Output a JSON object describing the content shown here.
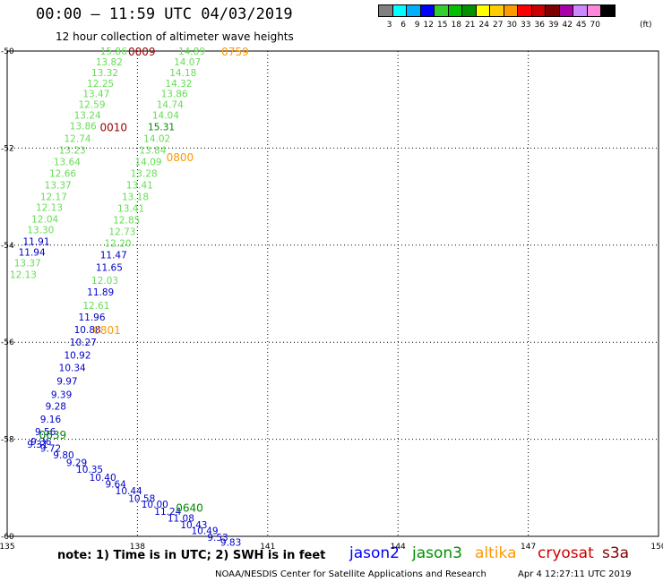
{
  "header": {
    "title": "00:00 – 11:59 UTC 04/03/2019",
    "subtitle": "12 hour collection of altimeter wave heights"
  },
  "color_scale": {
    "labels": [
      "3",
      "6",
      "9",
      "12",
      "15",
      "18",
      "21",
      "24",
      "27",
      "30",
      "33",
      "36",
      "39",
      "42",
      "45",
      "70"
    ],
    "unit": "(ft)",
    "colors": [
      "#808080",
      "#00ffff",
      "#00b0ff",
      "#0000ff",
      "#30d030",
      "#00c000",
      "#009000",
      "#ffff00",
      "#ffcc00",
      "#ff9900",
      "#ff0000",
      "#cc0000",
      "#800000",
      "#aa00aa",
      "#cc88ff",
      "#ff88dd",
      "#000000"
    ]
  },
  "chart_data": {
    "type": "scatter",
    "x_axis": {
      "range": [
        135,
        150
      ],
      "ticks": [
        "135",
        "138",
        "141",
        "144",
        "147",
        "150"
      ],
      "grid": true
    },
    "y_axis": {
      "range": [
        -60,
        -50
      ],
      "ticks": [
        "-50",
        "-52",
        "-54",
        "-56",
        "-58",
        "-60"
      ],
      "grid": true
    },
    "series": [
      {
        "name": "jason2",
        "color": "#0000ff"
      },
      {
        "name": "jason3",
        "color": "#009000"
      },
      {
        "name": "altika",
        "color": "#ff9900"
      },
      {
        "name": "cryosat",
        "color": "#cc0000"
      },
      {
        "name": "s3a",
        "color": "#800000"
      }
    ],
    "value_colors": {
      "light": "#66dd55",
      "blue": "#0000cc",
      "dgreen": "#008800",
      "orange": "#ff9900",
      "dred": "#990000"
    },
    "points": [
      {
        "lon": 137.45,
        "lat": -50.0,
        "label": "15.86",
        "c": "light"
      },
      {
        "lon": 137.35,
        "lat": -50.22,
        "label": "13.82",
        "c": "light"
      },
      {
        "lon": 137.25,
        "lat": -50.44,
        "label": "13.32",
        "c": "light"
      },
      {
        "lon": 137.15,
        "lat": -50.66,
        "label": "12.25",
        "c": "light"
      },
      {
        "lon": 137.05,
        "lat": -50.88,
        "label": "13.47",
        "c": "light"
      },
      {
        "lon": 136.95,
        "lat": -51.1,
        "label": "12.59",
        "c": "light"
      },
      {
        "lon": 136.85,
        "lat": -51.32,
        "label": "13.24",
        "c": "light"
      },
      {
        "lon": 136.75,
        "lat": -51.54,
        "label": "13.86",
        "c": "light"
      },
      {
        "lon": 136.62,
        "lat": -51.8,
        "label": "12.74",
        "c": "light"
      },
      {
        "lon": 136.5,
        "lat": -52.04,
        "label": "13.23",
        "c": "light"
      },
      {
        "lon": 136.38,
        "lat": -52.28,
        "label": "13.64",
        "c": "light"
      },
      {
        "lon": 136.28,
        "lat": -52.52,
        "label": "12.66",
        "c": "light"
      },
      {
        "lon": 136.17,
        "lat": -52.76,
        "label": "13.37",
        "c": "light"
      },
      {
        "lon": 136.07,
        "lat": -53.0,
        "label": "12.17",
        "c": "light"
      },
      {
        "lon": 135.97,
        "lat": -53.22,
        "label": "12.13",
        "c": "light"
      },
      {
        "lon": 135.87,
        "lat": -53.46,
        "label": "12.04",
        "c": "light"
      },
      {
        "lon": 135.77,
        "lat": -53.68,
        "label": "13.30",
        "c": "light"
      },
      {
        "lon": 135.67,
        "lat": -53.92,
        "label": "11.91",
        "c": "blue"
      },
      {
        "lon": 135.57,
        "lat": -54.14,
        "label": "11.94",
        "c": "blue"
      },
      {
        "lon": 135.47,
        "lat": -54.36,
        "label": "13.37",
        "c": "light"
      },
      {
        "lon": 135.37,
        "lat": -54.6,
        "label": "12.13",
        "c": "light"
      },
      {
        "lon": 139.25,
        "lat": -50.0,
        "label": "14.89",
        "c": "light"
      },
      {
        "lon": 139.15,
        "lat": -50.22,
        "label": "14.07",
        "c": "light"
      },
      {
        "lon": 139.05,
        "lat": -50.44,
        "label": "14.18",
        "c": "light"
      },
      {
        "lon": 138.95,
        "lat": -50.66,
        "label": "14.32",
        "c": "light"
      },
      {
        "lon": 138.85,
        "lat": -50.88,
        "label": "13.86",
        "c": "light"
      },
      {
        "lon": 138.75,
        "lat": -51.1,
        "label": "14.74",
        "c": "light"
      },
      {
        "lon": 138.65,
        "lat": -51.32,
        "label": "14.04",
        "c": "light"
      },
      {
        "lon": 138.55,
        "lat": -51.56,
        "label": "15.31",
        "c": "dgreen"
      },
      {
        "lon": 138.45,
        "lat": -51.8,
        "label": "14.02",
        "c": "light"
      },
      {
        "lon": 138.35,
        "lat": -52.04,
        "label": "13.84",
        "c": "light"
      },
      {
        "lon": 138.25,
        "lat": -52.28,
        "label": "14.09",
        "c": "light"
      },
      {
        "lon": 138.15,
        "lat": -52.52,
        "label": "13.28",
        "c": "light"
      },
      {
        "lon": 138.05,
        "lat": -52.76,
        "label": "13.41",
        "c": "light"
      },
      {
        "lon": 137.95,
        "lat": -53.0,
        "label": "13.18",
        "c": "light"
      },
      {
        "lon": 137.85,
        "lat": -53.24,
        "label": "13.41",
        "c": "light"
      },
      {
        "lon": 137.75,
        "lat": -53.48,
        "label": "12.85",
        "c": "light"
      },
      {
        "lon": 137.65,
        "lat": -53.72,
        "label": "12.73",
        "c": "light"
      },
      {
        "lon": 137.55,
        "lat": -53.96,
        "label": "12.20",
        "c": "light"
      },
      {
        "lon": 137.45,
        "lat": -54.2,
        "label": "11.47",
        "c": "blue"
      },
      {
        "lon": 137.35,
        "lat": -54.46,
        "label": "11.65",
        "c": "blue"
      },
      {
        "lon": 137.25,
        "lat": -54.72,
        "label": "12.03",
        "c": "light"
      },
      {
        "lon": 137.15,
        "lat": -54.96,
        "label": "11.89",
        "c": "blue"
      },
      {
        "lon": 137.05,
        "lat": -55.24,
        "label": "12.61",
        "c": "light"
      },
      {
        "lon": 136.95,
        "lat": -55.48,
        "label": "11.96",
        "c": "blue"
      },
      {
        "lon": 136.85,
        "lat": -55.74,
        "label": "10.88",
        "c": "blue"
      },
      {
        "lon": 136.75,
        "lat": -56.0,
        "label": "10.27",
        "c": "blue"
      },
      {
        "lon": 136.62,
        "lat": -56.26,
        "label": "10.92",
        "c": "blue"
      },
      {
        "lon": 136.5,
        "lat": -56.52,
        "label": "10.34",
        "c": "blue"
      },
      {
        "lon": 136.38,
        "lat": -56.8,
        "label": "9.97",
        "c": "blue"
      },
      {
        "lon": 136.25,
        "lat": -57.08,
        "label": "9.39",
        "c": "blue"
      },
      {
        "lon": 136.12,
        "lat": -57.32,
        "label": "9.28",
        "c": "blue"
      },
      {
        "lon": 136.0,
        "lat": -57.58,
        "label": "9.16",
        "c": "blue"
      },
      {
        "lon": 135.88,
        "lat": -57.84,
        "label": "9.56",
        "c": "blue"
      },
      {
        "lon": 135.78,
        "lat": -58.04,
        "label": "9.36",
        "c": "blue"
      },
      {
        "lon": 135.7,
        "lat": -58.1,
        "label": "9.31",
        "c": "blue"
      },
      {
        "lon": 136.0,
        "lat": -58.18,
        "label": "9.72",
        "c": "blue"
      },
      {
        "lon": 136.3,
        "lat": -58.32,
        "label": "9.80",
        "c": "blue"
      },
      {
        "lon": 136.6,
        "lat": -58.48,
        "label": "9.29",
        "c": "blue"
      },
      {
        "lon": 136.9,
        "lat": -58.62,
        "label": "10.35",
        "c": "blue"
      },
      {
        "lon": 137.2,
        "lat": -58.78,
        "label": "10.40",
        "c": "blue"
      },
      {
        "lon": 137.5,
        "lat": -58.92,
        "label": "9.64",
        "c": "blue"
      },
      {
        "lon": 137.8,
        "lat": -59.06,
        "label": "10.44",
        "c": "blue"
      },
      {
        "lon": 138.1,
        "lat": -59.22,
        "label": "10.58",
        "c": "blue"
      },
      {
        "lon": 138.4,
        "lat": -59.34,
        "label": "10.00",
        "c": "blue"
      },
      {
        "lon": 138.7,
        "lat": -59.48,
        "label": "11.24",
        "c": "blue"
      },
      {
        "lon": 139.0,
        "lat": -59.62,
        "label": "11.08",
        "c": "blue"
      },
      {
        "lon": 139.3,
        "lat": -59.76,
        "label": "10.43",
        "c": "blue"
      },
      {
        "lon": 139.55,
        "lat": -59.88,
        "label": "10.49",
        "c": "blue"
      },
      {
        "lon": 139.85,
        "lat": -60.02,
        "label": "9.53",
        "c": "blue"
      },
      {
        "lon": 140.15,
        "lat": -60.12,
        "label": "9.83",
        "c": "blue"
      }
    ],
    "time_labels": [
      {
        "lon": 138.1,
        "lat": -50.0,
        "label": "0009",
        "c": "dred"
      },
      {
        "lon": 140.25,
        "lat": -50.0,
        "label": "0759",
        "c": "orange"
      },
      {
        "lon": 137.45,
        "lat": -51.56,
        "label": "0010",
        "c": "dred"
      },
      {
        "lon": 138.98,
        "lat": -52.18,
        "label": "0800",
        "c": "orange"
      },
      {
        "lon": 137.3,
        "lat": -55.74,
        "label": "0801",
        "c": "orange"
      },
      {
        "lon": 136.05,
        "lat": -57.9,
        "label": "0639",
        "c": "dgreen"
      },
      {
        "lon": 139.2,
        "lat": -59.4,
        "label": "0640",
        "c": "dgreen"
      }
    ]
  },
  "footer": {
    "note": "note: 1) Time is in UTC; 2) SWH is in feet",
    "legend": [
      {
        "label": "jason2",
        "color": "#0000ff"
      },
      {
        "label": "jason3",
        "color": "#009000"
      },
      {
        "label": "altika",
        "color": "#ff9900"
      },
      {
        "label": "cryosat",
        "color": "#cc0000"
      },
      {
        "label": "s3a",
        "color": "#800000"
      }
    ],
    "credit": "NOAA/NESDIS Center for Satellite Applications and Research",
    "timestamp": "Apr  4 12:27:11 UTC 2019"
  }
}
